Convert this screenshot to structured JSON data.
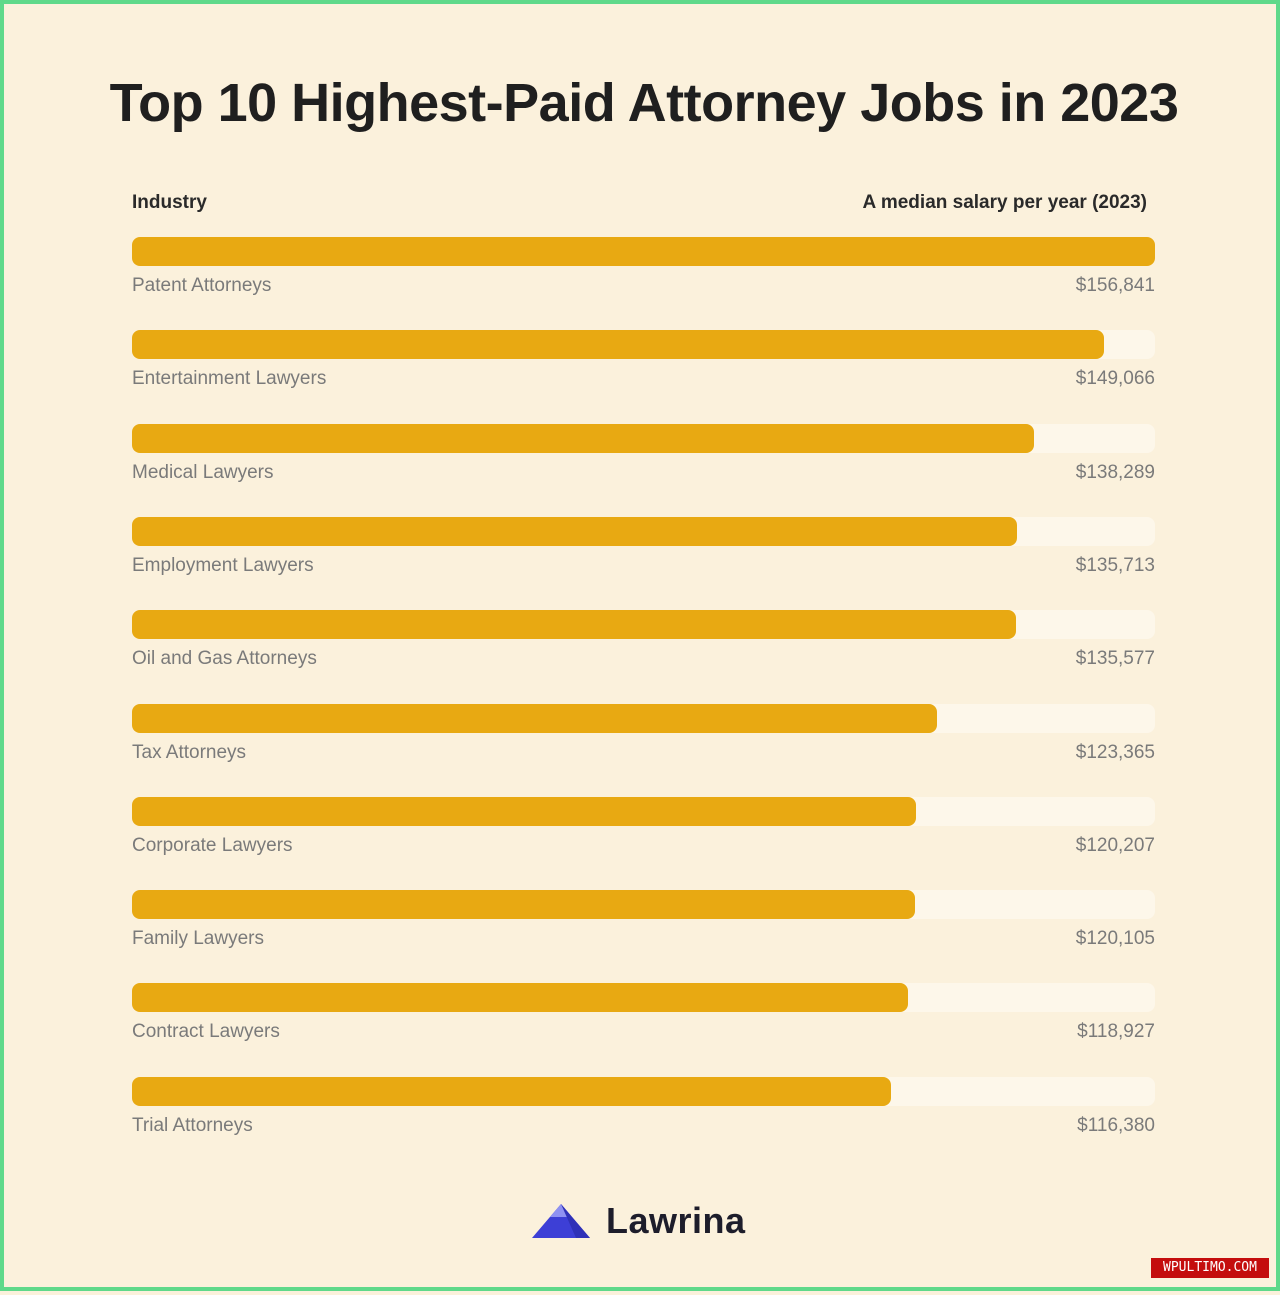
{
  "title": "Top 10 Highest-Paid Attorney Jobs in 2023",
  "column_headers": {
    "left": "Industry",
    "right": "A median salary per year (2023)"
  },
  "chart_data": {
    "type": "bar",
    "orientation": "horizontal",
    "title": "Top 10 Highest-Paid Attorney Jobs in 2023",
    "categories": [
      "Patent Attorneys",
      "Entertainment Lawyers",
      "Medical Lawyers",
      "Employment Lawyers",
      "Oil and Gas Attorneys",
      "Tax Attorneys",
      "Corporate Lawyers",
      "Family Lawyers",
      "Contract Lawyers",
      "Trial Attorneys"
    ],
    "values": [
      156841,
      149066,
      138289,
      135713,
      135577,
      123365,
      120207,
      120105,
      118927,
      116380
    ],
    "value_labels": [
      "$156,841",
      "$149,066",
      "$138,289",
      "$135,713",
      "$135,577",
      "$123,365",
      "$120,207",
      "$120,105",
      "$118,927",
      "$116,380"
    ],
    "xlim": [
      0,
      156841
    ],
    "grid": false,
    "legend": "none",
    "colors": {
      "bar": "#e8a912",
      "track": "#fdf7ea",
      "background": "#fbf1dc"
    }
  },
  "logo": {
    "text": "Lawrina",
    "icon": "mountain-logo-icon"
  },
  "watermark": "WPULTIMO.COM"
}
